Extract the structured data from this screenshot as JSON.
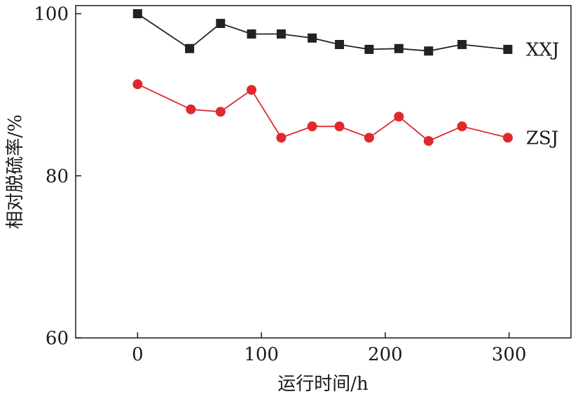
{
  "chart_data": {
    "type": "line",
    "xlabel": "运行时间/h",
    "ylabel": "相对脱硫率/%",
    "xlim": [
      -50,
      350
    ],
    "ylim": [
      60,
      101
    ],
    "x_ticks": [
      0,
      100,
      200,
      300
    ],
    "y_ticks": [
      60,
      80,
      100
    ],
    "x_tick_labels": [
      "0",
      "100",
      "200",
      "300"
    ],
    "y_tick_labels": [
      "60",
      "80",
      "100"
    ],
    "grid": false,
    "legend": "end-of-line labels",
    "series": [
      {
        "name": "XXJ",
        "marker": "square",
        "color": "#222222",
        "points": [
          {
            "x": 0,
            "y": 100.0
          },
          {
            "x": 42,
            "y": 95.7
          },
          {
            "x": 67,
            "y": 98.8
          },
          {
            "x": 92,
            "y": 97.5
          },
          {
            "x": 116,
            "y": 97.5
          },
          {
            "x": 141,
            "y": 97.0
          },
          {
            "x": 163,
            "y": 96.2
          },
          {
            "x": 187,
            "y": 95.6
          },
          {
            "x": 211,
            "y": 95.7
          },
          {
            "x": 235,
            "y": 95.4
          },
          {
            "x": 262,
            "y": 96.2
          },
          {
            "x": 299,
            "y": 95.6
          }
        ]
      },
      {
        "name": "ZSJ",
        "marker": "circle",
        "color": "#e0282e",
        "points": [
          {
            "x": 0,
            "y": 91.3
          },
          {
            "x": 43,
            "y": 88.2
          },
          {
            "x": 67,
            "y": 87.9
          },
          {
            "x": 92,
            "y": 90.6
          },
          {
            "x": 116,
            "y": 84.7
          },
          {
            "x": 141,
            "y": 86.1
          },
          {
            "x": 163,
            "y": 86.1
          },
          {
            "x": 187,
            "y": 84.7
          },
          {
            "x": 211,
            "y": 87.3
          },
          {
            "x": 235,
            "y": 84.3
          },
          {
            "x": 262,
            "y": 86.1
          },
          {
            "x": 299,
            "y": 84.7
          }
        ]
      }
    ]
  }
}
